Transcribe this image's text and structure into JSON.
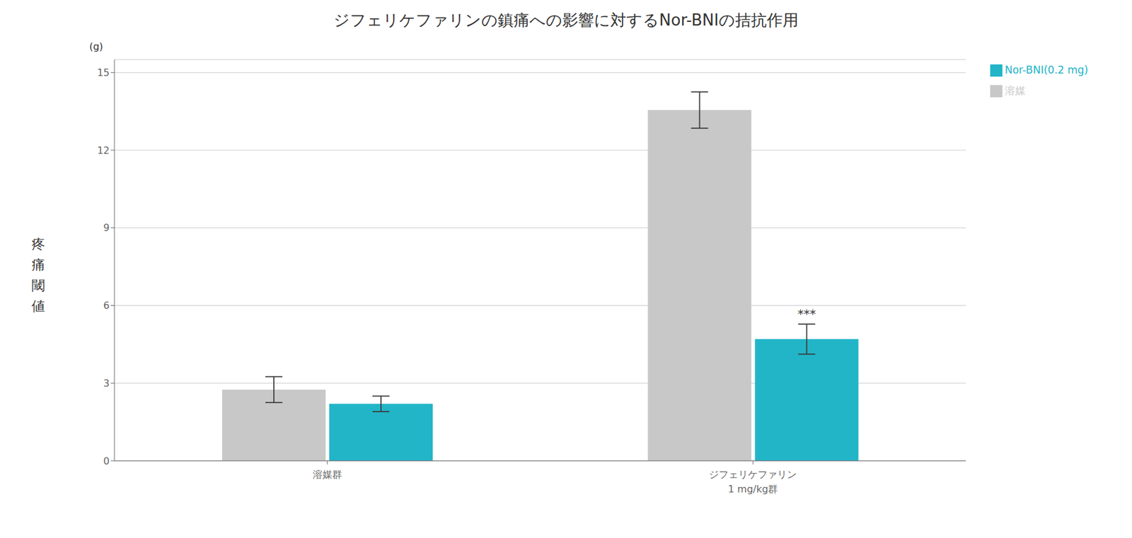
{
  "chart_data": {
    "type": "bar",
    "title": "ジフェリケファリンの鎮痛への影響に対するNor-BNIの拮抗作用",
    "ylabel": "疼痛閾値",
    "y_unit": "(g)",
    "categories": [
      "溶媒群",
      "ジフェリケファリン\n1 mg/kg群"
    ],
    "series": [
      {
        "name": "溶媒",
        "color": "#c8c8c8",
        "values": [
          2.75,
          13.55
        ],
        "errors": [
          0.5,
          0.7
        ]
      },
      {
        "name": "Nor-BNI(0.2 mg)",
        "color": "#22b5c8",
        "values": [
          2.2,
          4.7
        ],
        "errors": [
          0.3,
          0.58
        ]
      }
    ],
    "ylim": [
      0,
      15.5
    ],
    "yticks": [
      0,
      3,
      6,
      9,
      12,
      15
    ],
    "grid": true,
    "legend": "right",
    "annotations": [
      {
        "text": "***",
        "series": "Nor-BNI(0.2 mg)",
        "category": "ジフェリケファリン\n1 mg/kg群"
      }
    ]
  }
}
